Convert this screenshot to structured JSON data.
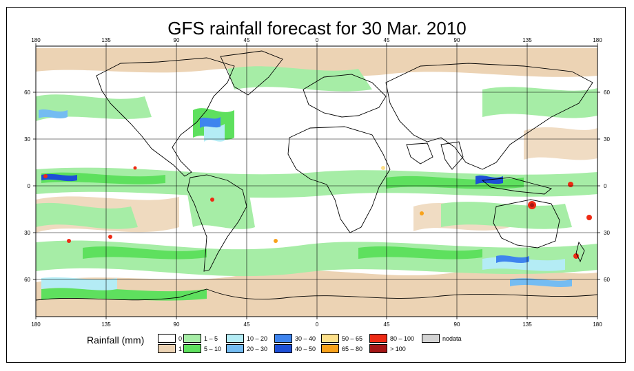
{
  "title": "GFS rainfall forecast for 30 Mar. 2010",
  "axes": {
    "lon_ticks": [
      "180",
      "135",
      "90",
      "45",
      "0",
      "45",
      "90",
      "135",
      "180"
    ],
    "lat_ticks": [
      "60",
      "30",
      "0",
      "30",
      "60"
    ]
  },
  "legend": {
    "title": "Rainfall (mm)",
    "items": [
      {
        "label": "0",
        "color": "#ffffff"
      },
      {
        "label": "1",
        "color": "#ecd3b4"
      },
      {
        "label": "1 – 5",
        "color": "#a6eda6"
      },
      {
        "label": "5 – 10",
        "color": "#5ee05e"
      },
      {
        "label": "10 – 20",
        "color": "#b4ecf5"
      },
      {
        "label": "20 – 30",
        "color": "#74bcf2"
      },
      {
        "label": "30 – 40",
        "color": "#3e84ee"
      },
      {
        "label": "40 – 50",
        "color": "#1d4fd6"
      },
      {
        "label": "50 – 65",
        "color": "#fde08a"
      },
      {
        "label": "65 – 80",
        "color": "#f8a21a"
      },
      {
        "label": "80 – 100",
        "color": "#ee2a14"
      },
      {
        "label": "> 100",
        "color": "#a51616"
      },
      {
        "label": "nodata",
        "color": "#d3d3d3"
      }
    ]
  }
}
